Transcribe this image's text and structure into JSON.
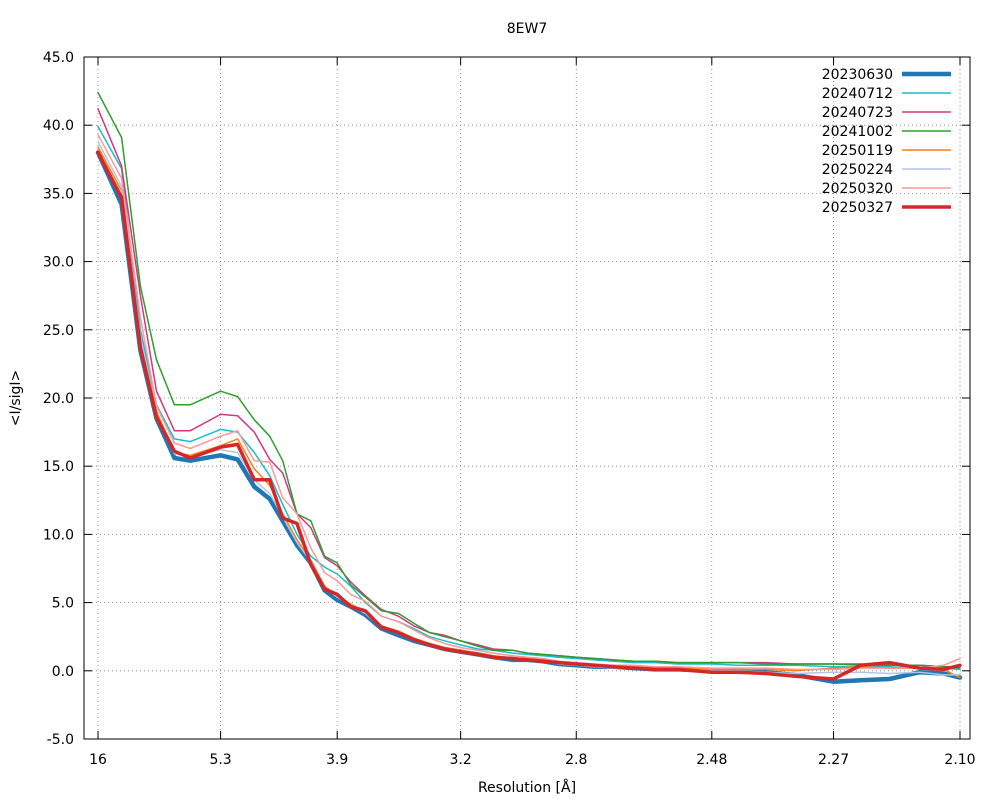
{
  "chart_data": {
    "type": "line",
    "title": "8EW7",
    "xlabel": "Resolution [Å]",
    "ylabel": "<I/sigI>",
    "x_tick_labels": [
      "16",
      "5.3",
      "3.9",
      "3.2",
      "2.8",
      "2.48",
      "2.27",
      "2.10"
    ],
    "x_ticks_resolution": [
      16,
      5.3,
      3.9,
      3.2,
      2.8,
      2.48,
      2.27,
      2.1
    ],
    "x_scale": "1/d^2",
    "y_tick_labels": [
      "-5.0",
      "0.0",
      "5.0",
      "10.0",
      "15.0",
      "20.0",
      "25.0",
      "30.0",
      "35.0",
      "40.0",
      "45.0"
    ],
    "ylim": [
      -5,
      45
    ],
    "grid": true,
    "legend_position": "top-right",
    "x_resolution": [
      16.0,
      10.0,
      8.2,
      7.25,
      6.5,
      6.0,
      5.3,
      5.0,
      4.75,
      4.55,
      4.4,
      4.25,
      4.12,
      4.0,
      3.9,
      3.8,
      3.7,
      3.6,
      3.5,
      3.42,
      3.34,
      3.27,
      3.2,
      3.13,
      3.07,
      3.0,
      2.95,
      2.9,
      2.85,
      2.8,
      2.75,
      2.7,
      2.65,
      2.6,
      2.55,
      2.48,
      2.43,
      2.38,
      2.33,
      2.27,
      2.23,
      2.19,
      2.15,
      2.12,
      2.1
    ],
    "series": [
      {
        "name": "20230630",
        "color": "#1f77b4",
        "width": 4.5,
        "values": [
          38.0,
          34.2,
          23.5,
          18.5,
          15.6,
          15.4,
          15.8,
          15.5,
          13.5,
          12.6,
          11.0,
          9.2,
          7.9,
          5.9,
          5.2,
          4.7,
          4.1,
          3.1,
          2.6,
          2.2,
          1.9,
          1.6,
          1.4,
          1.2,
          1.0,
          0.8,
          0.8,
          0.7,
          0.5,
          0.4,
          0.3,
          0.3,
          0.2,
          0.1,
          0.1,
          0.0,
          0.0,
          -0.1,
          -0.3,
          -0.8,
          -0.7,
          -0.6,
          -0.1,
          -0.2,
          -0.5
        ]
      },
      {
        "name": "20240712",
        "color": "#17becf",
        "width": 1.5,
        "values": [
          39.9,
          36.8,
          25.0,
          19.5,
          17.0,
          16.8,
          17.7,
          17.5,
          16.0,
          14.3,
          12.2,
          10.0,
          8.4,
          7.6,
          7.1,
          6.2,
          5.0,
          4.0,
          3.6,
          3.1,
          2.5,
          2.2,
          1.9,
          1.6,
          1.5,
          1.3,
          1.2,
          1.1,
          1.0,
          0.9,
          0.8,
          0.7,
          0.6,
          0.6,
          0.5,
          0.5,
          0.4,
          0.4,
          0.4,
          0.3,
          0.3,
          0.3,
          0.2,
          0.2,
          0.1
        ]
      },
      {
        "name": "20240723",
        "color": "#d33682",
        "width": 1.5,
        "values": [
          41.2,
          37.0,
          27.5,
          20.5,
          17.6,
          17.6,
          18.8,
          18.7,
          17.5,
          15.5,
          14.5,
          11.5,
          10.5,
          8.3,
          7.7,
          6.5,
          5.5,
          4.5,
          4.0,
          3.3,
          2.8,
          2.6,
          2.2,
          1.9,
          1.6,
          1.5,
          1.3,
          1.2,
          1.1,
          1.0,
          0.9,
          0.8,
          0.7,
          0.7,
          0.6,
          0.6,
          0.6,
          0.6,
          0.5,
          0.5,
          0.5,
          0.4,
          0.4,
          0.3,
          0.3
        ]
      },
      {
        "name": "20241002",
        "color": "#2ca02c",
        "width": 1.5,
        "values": [
          42.4,
          39.1,
          28.2,
          22.8,
          19.5,
          19.5,
          20.5,
          20.1,
          18.4,
          17.2,
          15.4,
          11.5,
          11.0,
          8.4,
          7.9,
          6.3,
          5.4,
          4.4,
          4.2,
          3.5,
          2.8,
          2.5,
          2.2,
          1.8,
          1.5,
          1.5,
          1.3,
          1.2,
          1.1,
          1.0,
          0.9,
          0.8,
          0.7,
          0.7,
          0.6,
          0.6,
          0.6,
          0.5,
          0.5,
          0.5,
          0.4,
          0.4,
          0.4,
          0.3,
          0.2
        ]
      },
      {
        "name": "20250119",
        "color": "#ff7f0e",
        "width": 1.5,
        "values": [
          38.4,
          35.2,
          24.3,
          19.0,
          16.0,
          15.8,
          16.5,
          17.0,
          14.8,
          13.6,
          11.5,
          9.6,
          8.1,
          6.2,
          5.5,
          4.9,
          4.3,
          3.3,
          2.9,
          2.4,
          2.0,
          1.7,
          1.5,
          1.3,
          1.1,
          0.9,
          0.9,
          0.8,
          0.6,
          0.5,
          0.4,
          0.3,
          0.3,
          0.2,
          0.2,
          0.1,
          0.1,
          0.1,
          0.0,
          0.2,
          0.3,
          0.2,
          0.2,
          0.1,
          -0.5
        ]
      },
      {
        "name": "20250224",
        "color": "#aec7e8",
        "width": 1.5,
        "values": [
          38.8,
          35.5,
          24.5,
          18.8,
          15.9,
          15.7,
          16.2,
          16.0,
          14.0,
          13.0,
          11.3,
          9.4,
          8.0,
          6.1,
          5.4,
          4.8,
          4.2,
          3.2,
          2.8,
          2.3,
          1.9,
          1.6,
          1.4,
          1.2,
          1.0,
          0.9,
          0.8,
          0.7,
          0.5,
          0.4,
          0.3,
          0.2,
          0.2,
          0.1,
          0.1,
          0.0,
          0.0,
          -0.1,
          -0.2,
          -0.1,
          -0.1,
          -0.2,
          -0.1,
          -0.3,
          -0.3
        ]
      },
      {
        "name": "20250320",
        "color": "#ff9896",
        "width": 1.5,
        "values": [
          39.3,
          36.1,
          25.9,
          19.4,
          16.7,
          16.3,
          17.2,
          17.6,
          15.4,
          15.3,
          12.7,
          11.5,
          9.0,
          7.2,
          6.6,
          5.6,
          5.1,
          4.0,
          3.6,
          3.0,
          2.4,
          2.0,
          1.7,
          1.5,
          1.3,
          1.1,
          1.0,
          0.9,
          0.7,
          0.6,
          0.5,
          0.4,
          0.4,
          0.3,
          0.3,
          0.2,
          0.2,
          0.2,
          0.1,
          0.1,
          0.2,
          0.2,
          0.2,
          0.4,
          0.9
        ]
      },
      {
        "name": "20250327",
        "color": "#d62728",
        "width": 3.5,
        "values": [
          38.0,
          34.7,
          23.7,
          18.6,
          16.1,
          15.6,
          16.4,
          16.6,
          14.0,
          14.0,
          11.2,
          10.8,
          7.8,
          6.0,
          5.6,
          4.7,
          4.4,
          3.2,
          2.8,
          2.3,
          1.9,
          1.6,
          1.4,
          1.2,
          1.0,
          0.9,
          0.8,
          0.7,
          0.6,
          0.5,
          0.4,
          0.3,
          0.2,
          0.1,
          0.1,
          -0.1,
          -0.1,
          -0.2,
          -0.4,
          -0.6,
          0.4,
          0.6,
          0.2,
          0.1,
          0.4
        ]
      }
    ]
  }
}
